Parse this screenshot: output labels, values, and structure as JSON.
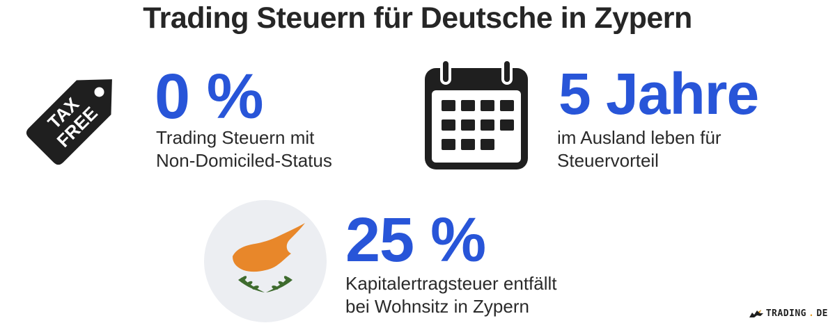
{
  "title": "Trading Steuern für Deutsche in Zypern",
  "icons": {
    "tag": "tax-free-tag-icon",
    "tag_text_line1": "TAX",
    "tag_text_line2": "FREE",
    "calendar": "calendar-icon",
    "map": "cyprus-flag-icon"
  },
  "stats": [
    {
      "value": "0 %",
      "line1": "Trading Steuern mit",
      "line2": "Non-Domiciled-Status"
    },
    {
      "value": "5 Jahre",
      "line1": "im Ausland leben für",
      "line2": "Steuervorteil"
    },
    {
      "value": "25 %",
      "line1": "Kapitalertragsteuer entfällt",
      "line2": "bei Wohnsitz in Zypern"
    }
  ],
  "brand": {
    "name": "TRADING",
    "dot": ".",
    "tld": "DE"
  },
  "colors": {
    "accent": "#2855d8",
    "dark": "#262626",
    "orange": "#e8872a",
    "olive": "#3e6b2e",
    "circle": "#eceef2"
  }
}
